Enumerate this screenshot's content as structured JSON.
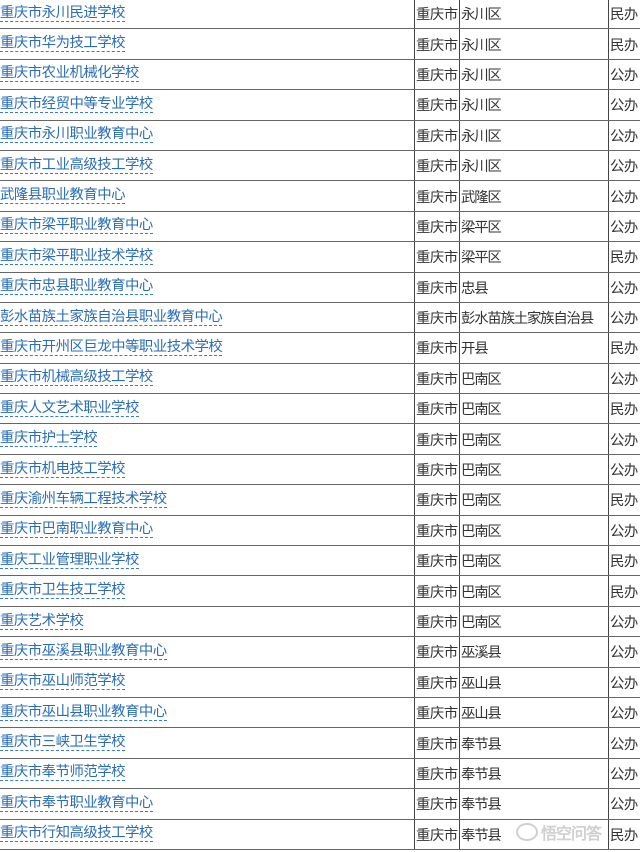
{
  "rows": [
    {
      "name": "重庆市永川民进学校",
      "city": "重庆市",
      "district": "永川区",
      "type": "民办"
    },
    {
      "name": "重庆市华为技工学校",
      "city": "重庆市",
      "district": "永川区",
      "type": "民办"
    },
    {
      "name": "重庆市农业机械化学校",
      "city": "重庆市",
      "district": "永川区",
      "type": "公办"
    },
    {
      "name": "重庆市经贸中等专业学校",
      "city": "重庆市",
      "district": "永川区",
      "type": "公办"
    },
    {
      "name": "重庆市永川职业教育中心",
      "city": "重庆市",
      "district": "永川区",
      "type": "公办"
    },
    {
      "name": "重庆市工业高级技工学校",
      "city": "重庆市",
      "district": "永川区",
      "type": "公办"
    },
    {
      "name": "武隆县职业教育中心",
      "city": "重庆市",
      "district": "武隆区",
      "type": "公办"
    },
    {
      "name": "重庆市梁平职业教育中心",
      "city": "重庆市",
      "district": "梁平区",
      "type": "公办"
    },
    {
      "name": "重庆市梁平职业技术学校",
      "city": "重庆市",
      "district": "梁平区",
      "type": "民办"
    },
    {
      "name": "重庆市忠县职业教育中心",
      "city": "重庆市",
      "district": "忠县",
      "type": "公办"
    },
    {
      "name": "彭水苗族土家族自治县职业教育中心",
      "city": "重庆市",
      "district": "彭水苗族土家族自治县",
      "type": "公办"
    },
    {
      "name": "重庆市开州区巨龙中等职业技术学校",
      "city": "重庆市",
      "district": "开县",
      "type": "民办"
    },
    {
      "name": "重庆市机械高级技工学校",
      "city": "重庆市",
      "district": "巴南区",
      "type": "公办"
    },
    {
      "name": "重庆人文艺术职业学校",
      "city": "重庆市",
      "district": "巴南区",
      "type": "民办"
    },
    {
      "name": "重庆市护士学校",
      "city": "重庆市",
      "district": "巴南区",
      "type": "公办"
    },
    {
      "name": "重庆市机电技工学校",
      "city": "重庆市",
      "district": "巴南区",
      "type": "公办"
    },
    {
      "name": "重庆渝州车辆工程技术学校",
      "city": "重庆市",
      "district": "巴南区",
      "type": "民办"
    },
    {
      "name": "重庆市巴南职业教育中心",
      "city": "重庆市",
      "district": "巴南区",
      "type": "公办"
    },
    {
      "name": "重庆工业管理职业学校",
      "city": "重庆市",
      "district": "巴南区",
      "type": "民办"
    },
    {
      "name": "重庆市卫生技工学校",
      "city": "重庆市",
      "district": "巴南区",
      "type": "民办"
    },
    {
      "name": "重庆艺术学校",
      "city": "重庆市",
      "district": "巴南区",
      "type": "公办"
    },
    {
      "name": "重庆市巫溪县职业教育中心",
      "city": "重庆市",
      "district": "巫溪县",
      "type": "公办"
    },
    {
      "name": "重庆市巫山师范学校",
      "city": "重庆市",
      "district": "巫山县",
      "type": "公办"
    },
    {
      "name": "重庆市巫山县职业教育中心",
      "city": "重庆市",
      "district": "巫山县",
      "type": "公办"
    },
    {
      "name": "重庆市三峡卫生学校",
      "city": "重庆市",
      "district": "奉节县",
      "type": "公办"
    },
    {
      "name": "重庆市奉节师范学校",
      "city": "重庆市",
      "district": "奉节县",
      "type": "公办"
    },
    {
      "name": "重庆市奉节职业教育中心",
      "city": "重庆市",
      "district": "奉节县",
      "type": "公办"
    },
    {
      "name": "重庆市行知高级技工学校",
      "city": "重庆市",
      "district": "奉节县",
      "type": "民办"
    }
  ],
  "watermark": "悟空问答",
  "colors": {
    "link": "#2a6db5",
    "text": "#333333",
    "grid": "#555555"
  }
}
